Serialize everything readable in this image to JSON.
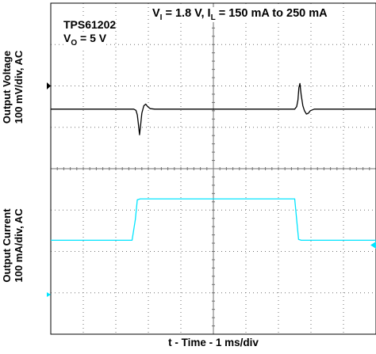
{
  "chart_data": {
    "type": "line",
    "title": "",
    "xlabel": "t - Time - 1 ms/div",
    "ylabels": [
      "Output Voltage 100 mV/div, AC",
      "Output Current 100 mA/div, AC"
    ],
    "ylabel_lines": {
      "voltage": [
        "Output Voltage",
        "100 mV/div, AC"
      ],
      "current": [
        "Output Current",
        "100 mA/div, AC"
      ]
    },
    "annotations": {
      "device": "TPS61202",
      "vo": {
        "main": "V",
        "sub": "O",
        "rest": " = 5 V"
      },
      "conditions": {
        "v": "V",
        "v_sub": "I",
        "mid": " = 1.8 V, I",
        "i_sub": "L",
        "rest": " = 150 mA to 250 mA"
      }
    },
    "grid": true,
    "xlim": [
      0,
      10
    ],
    "x_unit": "ms",
    "divisions": {
      "x": 10,
      "y": 8
    },
    "series": [
      {
        "name": "Output Voltage",
        "color": "#000000",
        "unit": "mV",
        "baseline": 0,
        "points": [
          [
            0,
            0
          ],
          [
            2.55,
            0
          ],
          [
            2.62,
            -3
          ],
          [
            2.66,
            -14
          ],
          [
            2.7,
            -40
          ],
          [
            2.73,
            -62
          ],
          [
            2.76,
            -40
          ],
          [
            2.8,
            -10
          ],
          [
            2.86,
            8
          ],
          [
            2.92,
            12
          ],
          [
            2.98,
            6
          ],
          [
            3.06,
            1
          ],
          [
            3.2,
            0
          ],
          [
            7.5,
            0
          ],
          [
            7.56,
            6
          ],
          [
            7.6,
            22
          ],
          [
            7.63,
            52
          ],
          [
            7.66,
            62
          ],
          [
            7.7,
            34
          ],
          [
            7.75,
            8
          ],
          [
            7.8,
            -4
          ],
          [
            7.86,
            -12
          ],
          [
            7.92,
            -10
          ],
          [
            7.98,
            -4
          ],
          [
            8.1,
            0
          ],
          [
            10,
            0
          ]
        ]
      },
      {
        "name": "Output Current",
        "color": "#00e5ff",
        "unit": "mA",
        "baseline": 150,
        "points": [
          [
            0,
            150
          ],
          [
            2.5,
            150
          ],
          [
            2.6,
            200
          ],
          [
            2.66,
            248
          ],
          [
            2.75,
            250
          ],
          [
            7.5,
            250
          ],
          [
            7.56,
            200
          ],
          [
            7.62,
            152
          ],
          [
            7.7,
            150
          ],
          [
            10,
            150
          ]
        ]
      }
    ]
  },
  "colors": {
    "grid": "#707070",
    "frame": "#000000",
    "marker_ch1": "#000000",
    "marker_ch2": "#00e5ff"
  }
}
